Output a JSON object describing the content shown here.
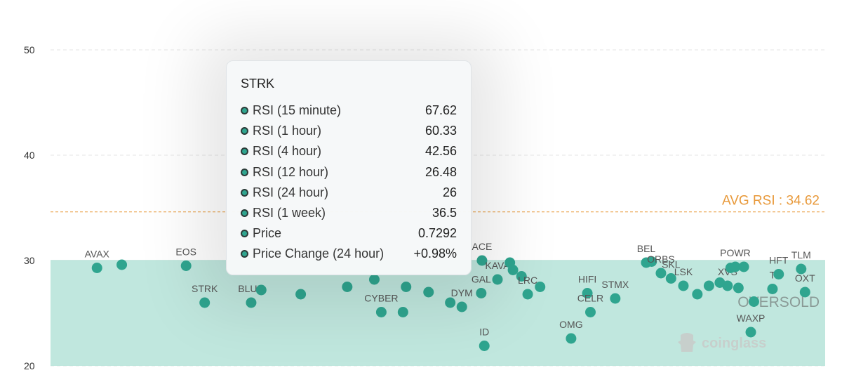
{
  "chart_data": {
    "type": "scatter",
    "y_axis": {
      "ticks": [
        50,
        40,
        30,
        20
      ],
      "range": [
        20,
        50
      ]
    },
    "grid": true,
    "avg_line": {
      "label": "AVG RSI : 34.62",
      "value": 34.62,
      "color": "#e8993a"
    },
    "zones": [
      {
        "label": "OVERSOLD",
        "from": 20,
        "to": 30,
        "color": "#b5e3d8"
      }
    ],
    "points": [
      {
        "label": "AVAX",
        "x": 0.06,
        "y": 29.3
      },
      {
        "label": "",
        "x": 0.092,
        "y": 29.6
      },
      {
        "label": "EOS",
        "x": 0.175,
        "y": 29.5
      },
      {
        "label": "STRK",
        "x": 0.199,
        "y": 26.0
      },
      {
        "label": "BLUR",
        "x": 0.259,
        "y": 26.0
      },
      {
        "label": "",
        "x": 0.272,
        "y": 27.2
      },
      {
        "label": "",
        "x": 0.323,
        "y": 26.8
      },
      {
        "label": "",
        "x": 0.383,
        "y": 27.5
      },
      {
        "label": "",
        "x": 0.418,
        "y": 28.2
      },
      {
        "label": "CYBER",
        "x": 0.427,
        "y": 25.1
      },
      {
        "label": "",
        "x": 0.455,
        "y": 25.1
      },
      {
        "label": "",
        "x": 0.459,
        "y": 27.5
      },
      {
        "label": "",
        "x": 0.488,
        "y": 27.0
      },
      {
        "label": "",
        "x": 0.516,
        "y": 26.0
      },
      {
        "label": "DYM",
        "x": 0.531,
        "y": 25.6
      },
      {
        "label": "ACE",
        "x": 0.557,
        "y": 30.0
      },
      {
        "label": "GAL",
        "x": 0.556,
        "y": 26.9
      },
      {
        "label": "ID",
        "x": 0.56,
        "y": 21.9
      },
      {
        "label": "KAVA",
        "x": 0.577,
        "y": 28.2
      },
      {
        "label": "",
        "x": 0.593,
        "y": 29.8
      },
      {
        "label": "",
        "x": 0.597,
        "y": 29.1
      },
      {
        "label": "",
        "x": 0.608,
        "y": 28.5
      },
      {
        "label": "LRC",
        "x": 0.616,
        "y": 26.8
      },
      {
        "label": "",
        "x": 0.632,
        "y": 27.5
      },
      {
        "label": "OMG",
        "x": 0.672,
        "y": 22.6
      },
      {
        "label": "HIFI",
        "x": 0.693,
        "y": 26.9
      },
      {
        "label": "CELR",
        "x": 0.697,
        "y": 25.1
      },
      {
        "label": "STMX",
        "x": 0.729,
        "y": 26.4
      },
      {
        "label": "BEL",
        "x": 0.769,
        "y": 29.8
      },
      {
        "label": "",
        "x": 0.776,
        "y": 29.9
      },
      {
        "label": "ORBS",
        "x": 0.788,
        "y": 28.8
      },
      {
        "label": "SKL",
        "x": 0.801,
        "y": 28.3
      },
      {
        "label": "LSK",
        "x": 0.817,
        "y": 27.6
      },
      {
        "label": "",
        "x": 0.835,
        "y": 26.8
      },
      {
        "label": "",
        "x": 0.85,
        "y": 27.6
      },
      {
        "label": "",
        "x": 0.864,
        "y": 27.9
      },
      {
        "label": "XVS",
        "x": 0.874,
        "y": 27.6
      },
      {
        "label": "",
        "x": 0.878,
        "y": 29.3
      },
      {
        "label": "POWR",
        "x": 0.884,
        "y": 29.4
      },
      {
        "label": "",
        "x": 0.888,
        "y": 27.4
      },
      {
        "label": "",
        "x": 0.895,
        "y": 29.4
      },
      {
        "label": "WAXP",
        "x": 0.904,
        "y": 23.2
      },
      {
        "label": "",
        "x": 0.908,
        "y": 26.1
      },
      {
        "label": "T",
        "x": 0.932,
        "y": 27.3
      },
      {
        "label": "HFT",
        "x": 0.94,
        "y": 28.7
      },
      {
        "label": "TLM",
        "x": 0.969,
        "y": 29.2
      },
      {
        "label": "OXT",
        "x": 0.974,
        "y": 27.0
      }
    ]
  },
  "tooltip": {
    "title": "STRK",
    "rows": [
      {
        "label": "RSI (15 minute)",
        "value": "67.62"
      },
      {
        "label": "RSI (1 hour)",
        "value": "60.33"
      },
      {
        "label": "RSI (4 hour)",
        "value": "42.56"
      },
      {
        "label": "RSI (12 hour)",
        "value": "26.48"
      },
      {
        "label": "RSI (24 hour)",
        "value": "26"
      },
      {
        "label": "RSI (1 week)",
        "value": "36.5"
      },
      {
        "label": "Price",
        "value": "0.7292"
      },
      {
        "label": "Price Change (24 hour)",
        "value": "+0.98%"
      }
    ]
  },
  "watermark": {
    "text": "coinglass",
    "icon": "coinglass-logo-icon"
  },
  "colors": {
    "point": "#2fa58f",
    "zone": "#b5e3d8",
    "avg": "#e8993a",
    "grid": "#e6e6e6"
  }
}
